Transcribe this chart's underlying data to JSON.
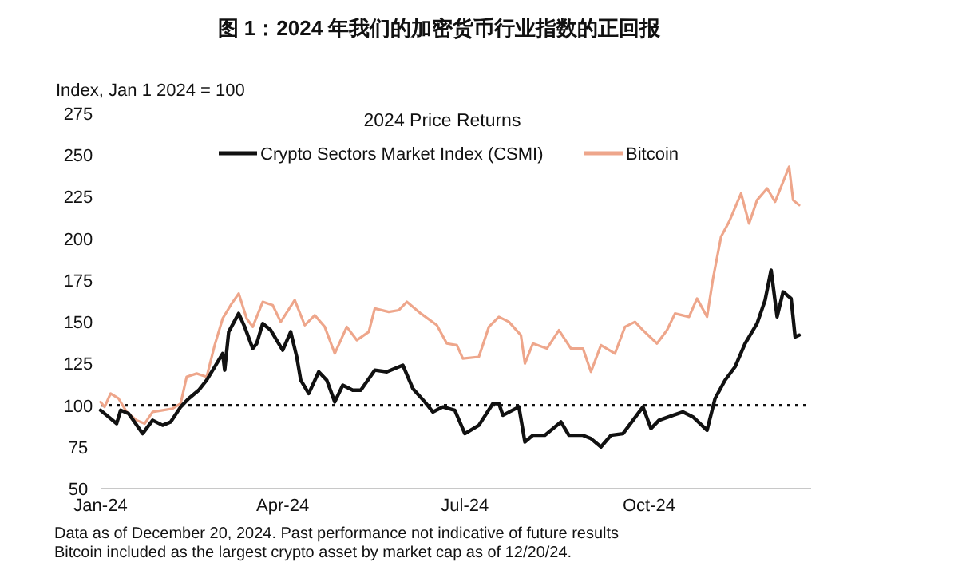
{
  "chart_data": {
    "type": "line",
    "title": "图 1：2024 年我们的加密货币行业指数的正回报",
    "subtitle": "2024 Price Returns",
    "ylabel": "Index, Jan 1 2024 = 100",
    "annotations": [
      "Data as of December 20, 2024. Past performance not indicative of future results",
      "Bitcoin included as the largest crypto asset by market cap as of 12/20/24."
    ],
    "xlim": [
      "2024-01-01",
      "2024-12-21"
    ],
    "xticks": [
      {
        "value": "2024-01-01",
        "label": "Jan-24"
      },
      {
        "value": "2024-04-01",
        "label": "Apr-24"
      },
      {
        "value": "2024-07-01",
        "label": "Jul-24"
      },
      {
        "value": "2024-10-01",
        "label": "Oct-24"
      }
    ],
    "ylim": [
      50,
      275
    ],
    "yticks": [
      50,
      75,
      100,
      125,
      150,
      175,
      200,
      225,
      250,
      275
    ],
    "grid": false,
    "legend": "top",
    "ref_lines": [
      {
        "axis": "y",
        "value": 100,
        "color": "#111111",
        "line_style": "dotted"
      }
    ],
    "series": [
      {
        "name": "Bitcoin",
        "color": "#eea68b",
        "x": [
          "2024-01-01",
          "2024-01-03",
          "2024-01-06",
          "2024-01-10",
          "2024-01-14",
          "2024-01-19",
          "2024-01-23",
          "2024-01-27",
          "2024-02-01",
          "2024-02-06",
          "2024-02-10",
          "2024-02-13",
          "2024-02-18",
          "2024-02-23",
          "2024-02-27",
          "2024-03-02",
          "2024-03-06",
          "2024-03-10",
          "2024-03-14",
          "2024-03-17",
          "2024-03-22",
          "2024-03-27",
          "2024-03-31",
          "2024-04-07",
          "2024-04-12",
          "2024-04-17",
          "2024-04-22",
          "2024-04-27",
          "2024-05-03",
          "2024-05-08",
          "2024-05-14",
          "2024-05-17",
          "2024-05-24",
          "2024-05-29",
          "2024-06-02",
          "2024-06-09",
          "2024-06-17",
          "2024-06-22",
          "2024-06-27",
          "2024-06-30",
          "2024-07-08",
          "2024-07-13",
          "2024-07-18",
          "2024-07-23",
          "2024-07-29",
          "2024-07-31",
          "2024-08-04",
          "2024-08-11",
          "2024-08-17",
          "2024-08-23",
          "2024-08-29",
          "2024-09-02",
          "2024-09-07",
          "2024-09-14",
          "2024-09-19",
          "2024-09-24",
          "2024-09-28",
          "2024-10-05",
          "2024-10-10",
          "2024-10-14",
          "2024-10-21",
          "2024-10-25",
          "2024-10-30",
          "2024-11-02",
          "2024-11-06",
          "2024-11-10",
          "2024-11-16",
          "2024-11-20",
          "2024-11-24",
          "2024-11-29",
          "2024-12-03",
          "2024-12-10",
          "2024-12-12",
          "2024-12-15"
        ],
        "values": [
          102,
          99,
          107,
          104,
          96,
          91,
          89,
          96,
          97,
          98,
          101,
          117,
          119,
          117,
          136,
          152,
          160,
          167,
          152,
          147,
          162,
          160,
          150,
          163,
          148,
          154,
          147,
          131,
          147,
          139,
          144,
          158,
          156,
          157,
          162,
          155,
          148,
          137,
          136,
          128,
          129,
          147,
          153,
          150,
          142,
          125,
          137,
          134,
          145,
          134,
          134,
          120,
          136,
          131,
          147,
          150,
          145,
          137,
          145,
          155,
          153,
          164,
          153,
          176,
          201,
          210,
          227,
          209,
          223,
          230,
          222,
          243,
          223,
          220
        ]
      },
      {
        "name": "Crypto Sectors Market Index (CSMI)",
        "color": "#111111",
        "x": [
          "2024-01-01",
          "2024-01-05",
          "2024-01-09",
          "2024-01-11",
          "2024-01-15",
          "2024-01-22",
          "2024-01-27",
          "2024-02-01",
          "2024-02-05",
          "2024-02-10",
          "2024-02-14",
          "2024-02-19",
          "2024-02-23",
          "2024-02-27",
          "2024-03-02",
          "2024-03-03",
          "2024-03-05",
          "2024-03-10",
          "2024-03-13",
          "2024-03-17",
          "2024-03-19",
          "2024-03-22",
          "2024-03-26",
          "2024-03-30",
          "2024-04-01",
          "2024-04-05",
          "2024-04-08",
          "2024-04-10",
          "2024-04-14",
          "2024-04-19",
          "2024-04-23",
          "2024-04-27",
          "2024-05-01",
          "2024-05-06",
          "2024-05-10",
          "2024-05-17",
          "2024-05-23",
          "2024-05-31",
          "2024-06-05",
          "2024-06-11",
          "2024-06-15",
          "2024-06-20",
          "2024-06-26",
          "2024-07-01",
          "2024-07-08",
          "2024-07-15",
          "2024-07-18",
          "2024-07-20",
          "2024-07-28",
          "2024-07-31",
          "2024-08-04",
          "2024-08-10",
          "2024-08-18",
          "2024-08-22",
          "2024-08-29",
          "2024-09-02",
          "2024-09-07",
          "2024-09-12",
          "2024-09-18",
          "2024-09-23",
          "2024-09-28",
          "2024-10-02",
          "2024-10-06",
          "2024-10-13",
          "2024-10-18",
          "2024-10-23",
          "2024-10-30",
          "2024-11-03",
          "2024-11-08",
          "2024-11-13",
          "2024-11-18",
          "2024-11-24",
          "2024-11-28",
          "2024-12-01",
          "2024-12-04",
          "2024-12-07",
          "2024-12-11",
          "2024-12-13",
          "2024-12-15"
        ],
        "values": [
          97,
          93,
          89,
          97,
          95,
          83,
          91,
          88,
          90,
          99,
          104,
          109,
          115,
          123,
          131,
          121,
          144,
          155,
          147,
          134,
          137,
          149,
          145,
          137,
          133,
          144,
          129,
          115,
          107,
          120,
          115,
          102,
          112,
          109,
          109,
          121,
          120,
          124,
          110,
          102,
          96,
          99,
          97,
          83,
          88,
          101,
          101,
          94,
          99,
          78,
          82,
          82,
          90,
          82,
          82,
          80,
          75,
          82,
          83,
          91,
          99,
          86,
          91,
          94,
          96,
          93,
          85,
          104,
          115,
          123,
          137,
          149,
          163,
          181,
          153,
          168,
          164,
          141,
          142
        ]
      }
    ]
  }
}
